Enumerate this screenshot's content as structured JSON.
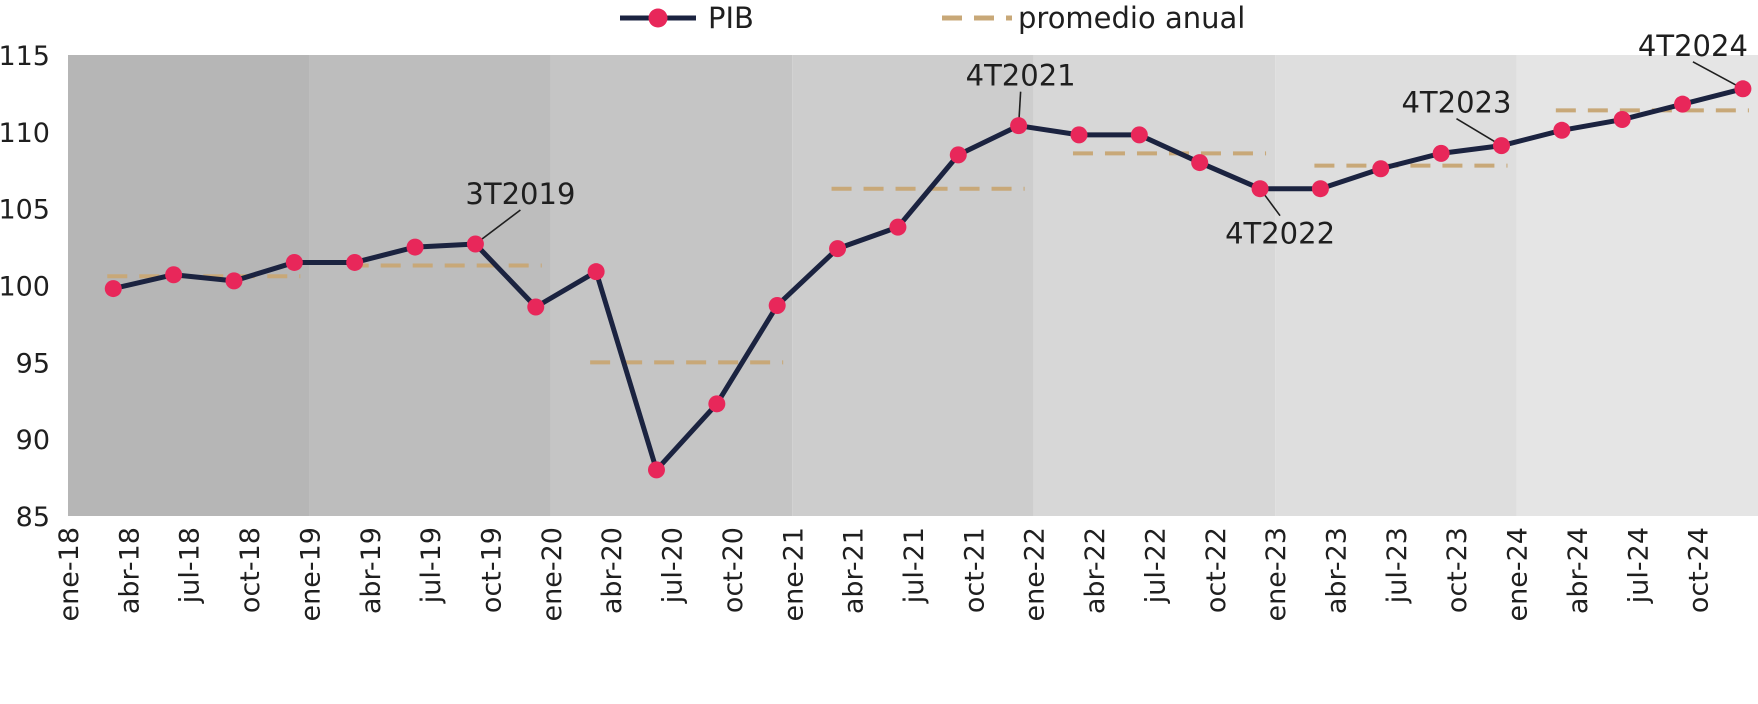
{
  "chart_data": {
    "type": "line",
    "title": "",
    "xlabel": "",
    "ylabel": "",
    "ylim": [
      85,
      115
    ],
    "yticks": [
      85,
      90,
      95,
      100,
      105,
      110,
      115
    ],
    "x_tick_labels": [
      "ene-18",
      "abr-18",
      "jul-18",
      "oct-18",
      "ene-19",
      "abr-19",
      "jul-19",
      "oct-19",
      "ene-20",
      "abr-20",
      "jul-20",
      "oct-20",
      "ene-21",
      "abr-21",
      "jul-21",
      "oct-21",
      "ene-22",
      "abr-22",
      "jul-22",
      "oct-22",
      "ene-23",
      "abr-23",
      "jul-23",
      "oct-23",
      "ene-24",
      "abr-24",
      "jul-24",
      "oct-24"
    ],
    "legend": {
      "placement": "top-center",
      "items": [
        {
          "label": "PIB",
          "style": "line-marker"
        },
        {
          "label": "promedio anual",
          "style": "dashed"
        }
      ]
    },
    "series": [
      {
        "name": "PIB",
        "color": "#1b2340",
        "marker_color": "#e8275a",
        "x": [
          "1T2018",
          "2T2018",
          "3T2018",
          "4T2018",
          "1T2019",
          "2T2019",
          "3T2019",
          "4T2019",
          "1T2020",
          "2T2020",
          "3T2020",
          "4T2020",
          "1T2021",
          "2T2021",
          "3T2021",
          "4T2021",
          "1T2022",
          "2T2022",
          "3T2022",
          "4T2022",
          "1T2023",
          "2T2023",
          "3T2023",
          "4T2023",
          "1T2024",
          "2T2024",
          "3T2024",
          "4T2024"
        ],
        "values": [
          99.8,
          100.7,
          100.3,
          101.5,
          101.5,
          102.5,
          102.7,
          98.6,
          100.9,
          88.0,
          92.3,
          98.7,
          102.4,
          103.8,
          108.5,
          110.4,
          109.8,
          109.8,
          108.0,
          106.3,
          106.3,
          107.6,
          108.6,
          109.1,
          110.1,
          110.8,
          111.8,
          112.8
        ]
      },
      {
        "name": "promedio anual",
        "color": "#c8a878",
        "style": "dashed",
        "x": [
          "2018",
          "2019",
          "2020",
          "2021",
          "2022",
          "2023",
          "2024"
        ],
        "values": [
          100.6,
          101.3,
          95.0,
          106.3,
          108.6,
          107.8,
          111.4
        ]
      }
    ],
    "annotations": [
      {
        "label": "3T2019",
        "point": "3T2019"
      },
      {
        "label": "4T2021",
        "point": "4T2021"
      },
      {
        "label": "4T2022",
        "point": "4T2022"
      },
      {
        "label": "4T2023",
        "point": "4T2023"
      },
      {
        "label": "4T2024",
        "point": "4T2024"
      }
    ],
    "year_bands": [
      "#b6b6b6",
      "#bdbdbd",
      "#c5c5c5",
      "#cdcdcd",
      "#d7d7d7",
      "#dedede",
      "#e5e5e5",
      "#ececec"
    ],
    "grid": false
  }
}
